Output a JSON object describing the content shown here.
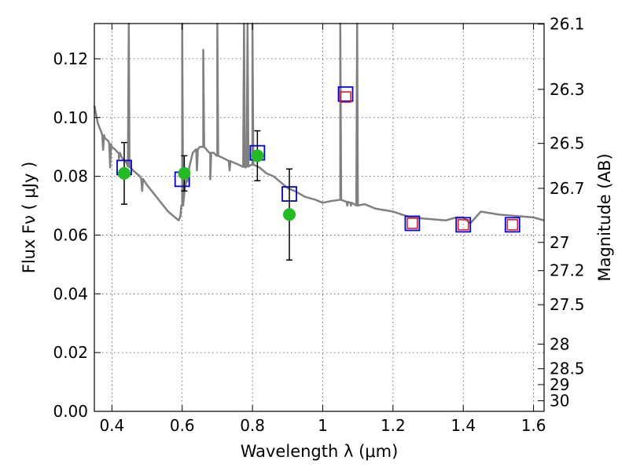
{
  "chart_data": {
    "type": "scatter",
    "title": "",
    "xlabel": "Wavelength  λ (μm)",
    "ylabel": "Flux  Fν  ( μJy )",
    "y2label": "Magnitude (AB)",
    "xlim": [
      0.35,
      1.63
    ],
    "ylim": [
      0.0,
      0.132
    ],
    "grid": true,
    "legend": "none",
    "xticks": [
      0.4,
      0.6,
      0.8,
      1.0,
      1.2,
      1.4,
      1.6
    ],
    "xtick_labels": [
      "0.4",
      "0.6",
      "0.8",
      "1",
      "1.2",
      "1.4",
      "1.6"
    ],
    "yticks": [
      0.0,
      0.02,
      0.04,
      0.06,
      0.08,
      0.1,
      0.12
    ],
    "ytick_labels": [
      "0.00",
      "0.02",
      "0.04",
      "0.06",
      "0.08",
      "0.10",
      "0.12"
    ],
    "mag_ticks": [
      {
        "label": "26.1",
        "flux": 0.1318
      },
      {
        "label": "26.3",
        "flux": 0.1096
      },
      {
        "label": "26.5",
        "flux": 0.0912
      },
      {
        "label": "26.7",
        "flux": 0.0759
      },
      {
        "label": "27",
        "flux": 0.0575
      },
      {
        "label": "27.2",
        "flux": 0.0479
      },
      {
        "label": "27.5",
        "flux": 0.0363
      },
      {
        "label": "28",
        "flux": 0.0229
      },
      {
        "label": "28.5",
        "flux": 0.0145
      },
      {
        "label": "29",
        "flux": 0.0091
      },
      {
        "label": "30",
        "flux": 0.0036
      }
    ],
    "colors": {
      "model": "#808080",
      "observed": "#22bb22",
      "errorbar": "#000000",
      "model_photometry": "#0000dd",
      "nir_photometry": "#dd2222"
    },
    "model_sed": {
      "x": [
        0.35,
        0.36,
        0.37,
        0.38,
        0.39,
        0.4,
        0.41,
        0.42,
        0.43,
        0.44,
        0.45,
        0.46,
        0.47,
        0.48,
        0.5,
        0.52,
        0.54,
        0.56,
        0.57,
        0.58,
        0.585,
        0.59,
        0.595,
        0.6,
        0.61,
        0.62,
        0.63,
        0.64,
        0.65,
        0.66,
        0.67,
        0.68,
        0.69,
        0.7,
        0.72,
        0.74,
        0.76,
        0.78,
        0.8,
        0.82,
        0.84,
        0.86,
        0.88,
        0.9,
        0.92,
        0.95,
        0.98,
        1.0,
        1.02,
        1.05,
        1.08,
        1.1,
        1.12,
        1.15,
        1.2,
        1.25,
        1.3,
        1.35,
        1.38,
        1.4,
        1.42,
        1.45,
        1.5,
        1.55,
        1.6,
        1.63
      ],
      "y": [
        0.104,
        0.098,
        0.095,
        0.093,
        0.092,
        0.09,
        0.089,
        0.088,
        0.086,
        0.085,
        0.083,
        0.082,
        0.081,
        0.08,
        0.077,
        0.074,
        0.071,
        0.068,
        0.067,
        0.066,
        0.0655,
        0.065,
        0.0665,
        0.07,
        0.077,
        0.083,
        0.088,
        0.089,
        0.09,
        0.09,
        0.089,
        0.088,
        0.088,
        0.087,
        0.086,
        0.085,
        0.084,
        0.083,
        0.084,
        0.083,
        0.081,
        0.08,
        0.078,
        0.076,
        0.075,
        0.073,
        0.072,
        0.071,
        0.0715,
        0.072,
        0.071,
        0.07,
        0.0705,
        0.069,
        0.068,
        0.066,
        0.0655,
        0.065,
        0.066,
        0.066,
        0.064,
        0.068,
        0.067,
        0.0665,
        0.066,
        0.065
      ]
    },
    "emission_lines": [
      {
        "x": 0.448,
        "peak": 0.132
      },
      {
        "x": 0.6,
        "peak": 0.132
      },
      {
        "x": 0.66,
        "peak": 0.123
      },
      {
        "x": 0.7,
        "peak": 0.132
      },
      {
        "x": 0.776,
        "peak": 0.132
      },
      {
        "x": 0.786,
        "peak": 0.132
      },
      {
        "x": 0.8,
        "peak": 0.132
      },
      {
        "x": 1.05,
        "peak": 0.132
      },
      {
        "x": 1.098,
        "peak": 0.132
      }
    ],
    "absorption_lines": [
      {
        "x": 0.375,
        "depth": 0.089
      },
      {
        "x": 0.395,
        "depth": 0.083
      },
      {
        "x": 0.42,
        "depth": 0.086
      },
      {
        "x": 0.486,
        "depth": 0.075
      },
      {
        "x": 0.612,
        "depth": 0.079
      },
      {
        "x": 0.642,
        "depth": 0.082
      },
      {
        "x": 0.68,
        "depth": 0.079
      },
      {
        "x": 0.735,
        "depth": 0.082
      },
      {
        "x": 1.07,
        "depth": 0.07
      },
      {
        "x": 1.08,
        "depth": 0.07
      }
    ],
    "observed": {
      "x": [
        0.435,
        0.606,
        0.814,
        0.905
      ],
      "y": [
        0.081,
        0.081,
        0.087,
        0.067
      ],
      "err": [
        0.0105,
        0.006,
        0.0085,
        0.0155
      ]
    },
    "model_photometry": {
      "x": [
        0.435,
        0.6,
        0.814,
        0.905,
        1.065,
        1.255,
        1.4,
        1.54
      ],
      "y": [
        0.083,
        0.079,
        0.088,
        0.074,
        0.108,
        0.064,
        0.0635,
        0.0635
      ]
    },
    "nir_photometry": {
      "x": [
        1.065,
        1.255,
        1.4,
        1.54
      ],
      "y": [
        0.107,
        0.064,
        0.0635,
        0.0635
      ]
    }
  }
}
